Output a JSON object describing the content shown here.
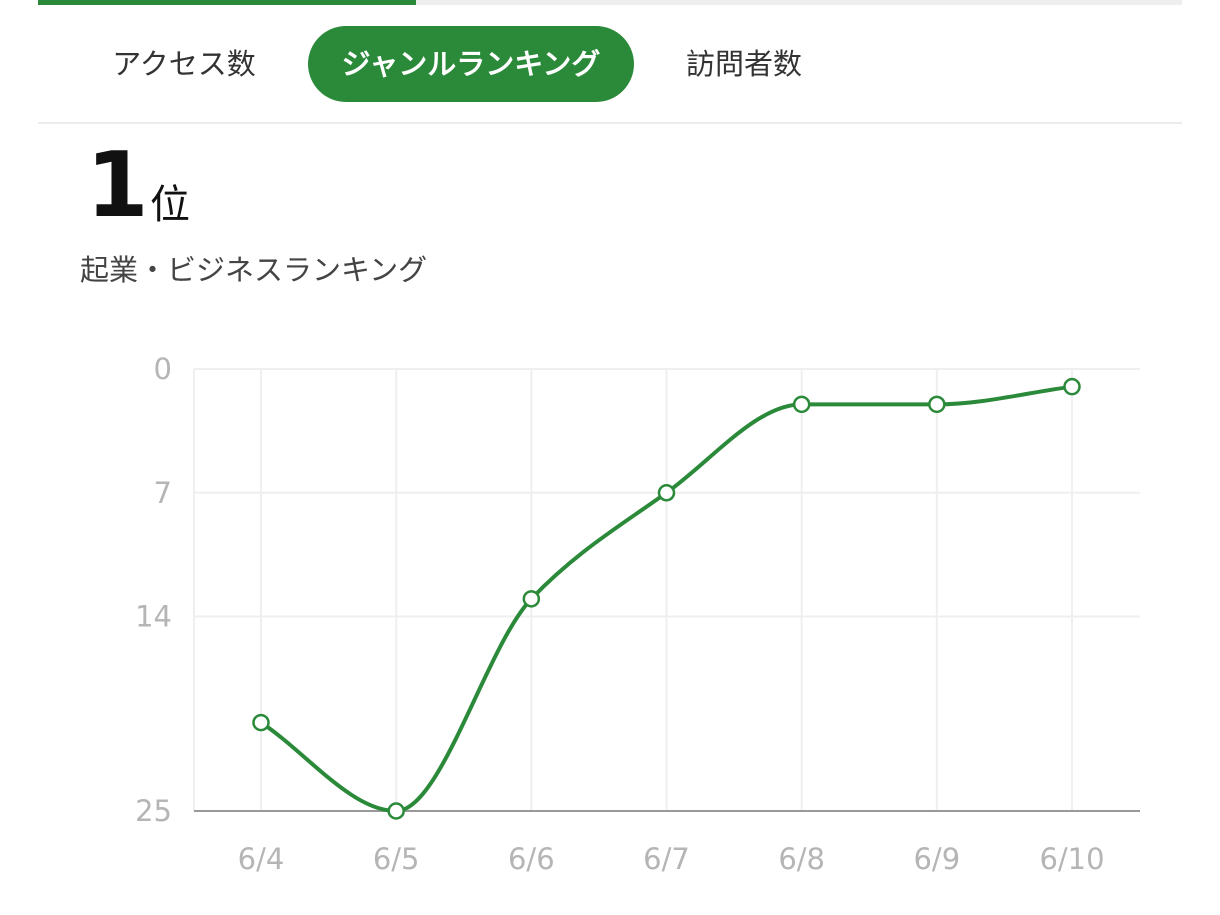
{
  "progress": {
    "fraction": 0.33
  },
  "tabs": [
    {
      "label": "アクセス数",
      "active": false
    },
    {
      "label": "ジャンルランキング",
      "active": true
    },
    {
      "label": "訪問者数",
      "active": false
    }
  ],
  "rank": {
    "value": "1",
    "unit": "位",
    "category": "起業・ビジネスランキング"
  },
  "colors": {
    "accent": "#2b8a3a",
    "grid": "#efefef",
    "tick": "#b5b5b5",
    "axis": "#999999"
  },
  "chart_data": {
    "type": "line",
    "title": "",
    "xlabel": "",
    "ylabel": "",
    "categories": [
      "6/4",
      "6/5",
      "6/6",
      "6/7",
      "6/8",
      "6/9",
      "6/10"
    ],
    "values": [
      20,
      25,
      13,
      7,
      2,
      2,
      1
    ],
    "ylim": [
      0,
      25
    ],
    "y_inverted": true,
    "yticks": [
      0,
      7,
      14,
      25
    ],
    "grid": true,
    "legend": "none",
    "markers": "hollow-circle",
    "smooth": true
  }
}
